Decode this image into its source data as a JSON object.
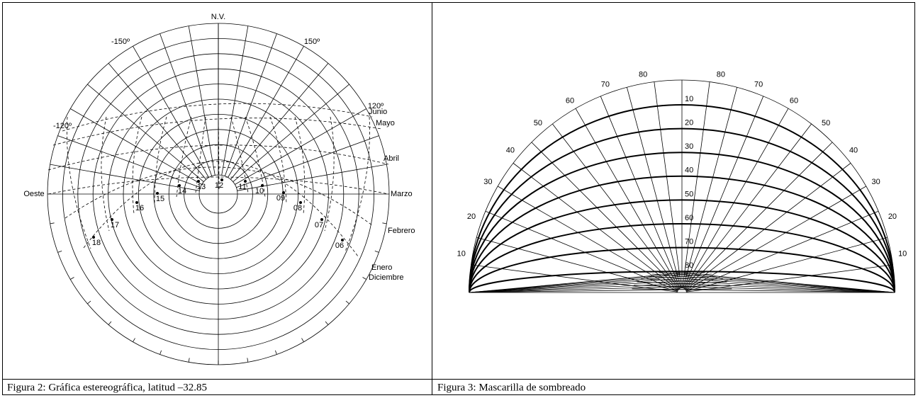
{
  "figure2": {
    "north_label": "N.V.",
    "azimuth_labels": [
      "-150º",
      "150º",
      "-120º",
      "120º"
    ],
    "west_label": "Oeste",
    "months": [
      "Junio",
      "Mayo",
      "Abril",
      "Marzo",
      "Febrero",
      "Enero",
      "Diciembre"
    ],
    "hours": [
      "18",
      "17",
      "16",
      "15",
      "14",
      "13",
      "12",
      "11",
      "10",
      "09",
      "08",
      "07",
      "06"
    ],
    "caption": "Figura 2: Gráfica estereográfica, latitud –32.85"
  },
  "figure3": {
    "altitudes": [
      10,
      20,
      30,
      40,
      50,
      60,
      70,
      80
    ],
    "caption": "Figura 3: Mascarilla de sombreado"
  }
}
